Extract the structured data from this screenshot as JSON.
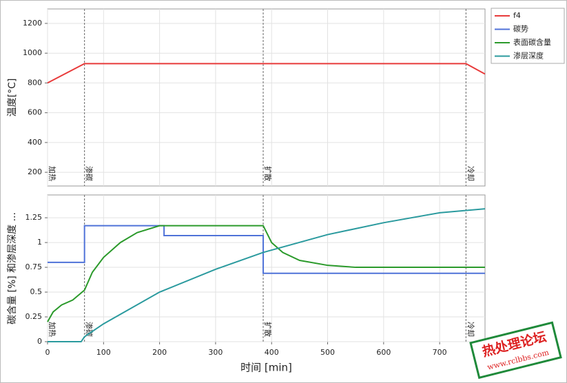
{
  "chart_data": [
    {
      "type": "line",
      "ylabel": "温度[°C]",
      "xlim": [
        0,
        781
      ],
      "xticks": [
        0,
        100,
        200,
        300,
        400,
        500,
        600,
        700
      ],
      "ylim": [
        108,
        1297
      ],
      "yticks": [
        200,
        400,
        600,
        800,
        1000,
        1200
      ],
      "grid": true,
      "phases": [
        {
          "x": 0,
          "label": "加热"
        },
        {
          "x": 66,
          "label": "渗碳"
        },
        {
          "x": 385,
          "label": "扩散"
        },
        {
          "x": 747,
          "label": "冷却"
        }
      ],
      "series": [
        {
          "name": "f4",
          "color": "#e83a3a",
          "x": [
            0,
            66,
            747,
            781
          ],
          "values": [
            800,
            930,
            930,
            860
          ]
        }
      ]
    },
    {
      "type": "line",
      "ylabel": "碳含量 [%] 和渗层深度 ...",
      "xlabel": "时间 [min]",
      "xlim": [
        0,
        781
      ],
      "xticks": [
        0,
        100,
        200,
        300,
        400,
        500,
        600,
        700
      ],
      "ylim": [
        0,
        1.48
      ],
      "yticks": [
        0,
        0.25,
        0.5,
        0.75,
        1,
        1.25
      ],
      "grid": true,
      "phases": [
        {
          "x": 0,
          "label": "加热"
        },
        {
          "x": 66,
          "label": "渗碳"
        },
        {
          "x": 385,
          "label": "扩散"
        },
        {
          "x": 747,
          "label": "冷却"
        }
      ],
      "series": [
        {
          "name": "碳势",
          "color": "#4f72d8",
          "x": [
            0,
            66,
            66,
            208,
            208,
            385,
            385,
            781
          ],
          "values": [
            0.8,
            0.8,
            1.17,
            1.17,
            1.07,
            1.07,
            0.69,
            0.69
          ]
        },
        {
          "name": "表面碳含量",
          "color": "#2b9a2b",
          "x": [
            0,
            10,
            25,
            45,
            66,
            80,
            100,
            130,
            160,
            200,
            385,
            400,
            420,
            450,
            500,
            550,
            781
          ],
          "values": [
            0.2,
            0.3,
            0.37,
            0.42,
            0.52,
            0.7,
            0.85,
            1.0,
            1.1,
            1.17,
            1.17,
            1.0,
            0.9,
            0.82,
            0.77,
            0.75,
            0.75
          ]
        },
        {
          "name": "渗层深度",
          "color": "#2a9a9e",
          "x": [
            0,
            60,
            66,
            100,
            200,
            300,
            385,
            500,
            600,
            700,
            781
          ],
          "values": [
            0,
            0,
            0.05,
            0.18,
            0.5,
            0.73,
            0.9,
            1.08,
            1.2,
            1.3,
            1.34
          ]
        }
      ]
    }
  ],
  "watermark": {
    "title": "热处理论坛",
    "url": "www.rclbbs.com"
  }
}
